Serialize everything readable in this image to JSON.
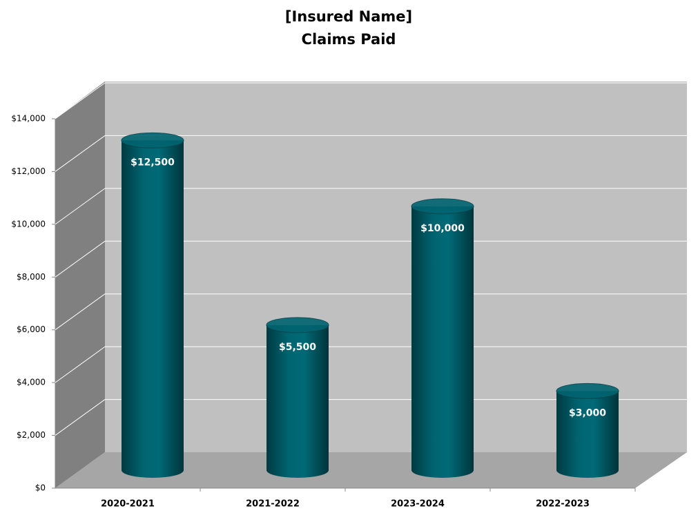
{
  "chart_data": {
    "type": "bar3d",
    "title": "[Insured Name]",
    "subtitle": "Claims Paid",
    "categories": [
      "2020-2021",
      "2021-2022",
      "2023-2024",
      "2022-2023"
    ],
    "values": [
      12500,
      5500,
      10000,
      3000
    ],
    "value_labels": [
      "$12,500",
      "$5,500",
      "$10,000",
      "$3,000"
    ],
    "color": "#006470",
    "ylim": [
      0,
      14000
    ],
    "yticks": [
      {
        "value": 0,
        "label": "$0"
      },
      {
        "value": 2000,
        "label": "$2,000"
      },
      {
        "value": 4000,
        "label": "$4,000"
      },
      {
        "value": 6000,
        "label": "$6,000"
      },
      {
        "value": 8000,
        "label": "$8,000"
      },
      {
        "value": 10000,
        "label": "$10,000"
      },
      {
        "value": 12000,
        "label": "$12,000"
      },
      {
        "value": 14000,
        "label": "$14,000"
      }
    ],
    "grid": true
  }
}
